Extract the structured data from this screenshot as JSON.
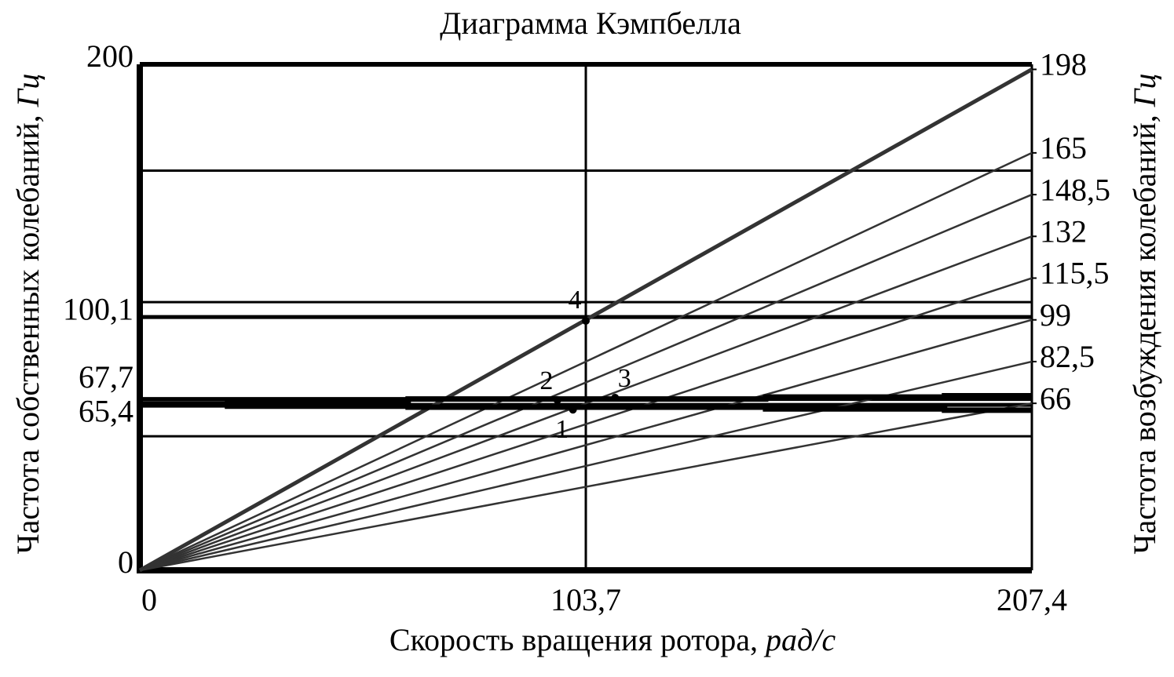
{
  "chart_data": {
    "type": "line",
    "title": "Диаграмма Кэмпбелла",
    "x_label": "Скорость вращения ротора, ",
    "x_label_unit": "рад/с",
    "y_label": "Частота собственных колебаний, ",
    "y_label_unit": "Гц",
    "y2_label": "Частота возбуждения колебаний, ",
    "y2_label_unit": "Гц",
    "xlim": [
      0,
      207.4
    ],
    "xticks": [
      0,
      {
        "value": 103.7,
        "label": "103,7"
      },
      {
        "value": 207.4,
        "label": "207,4"
      }
    ],
    "ylim": [
      0,
      200
    ],
    "yticks": [
      0,
      {
        "value": 65.4,
        "label": "65,4"
      },
      {
        "value": 67.7,
        "label": "67,7"
      },
      {
        "value": 100.1,
        "label": "100,1"
      },
      200
    ],
    "y2lim": [
      0,
      200
    ],
    "y2ticks": [
      66,
      {
        "value": 82.5,
        "label": "82,5"
      },
      99,
      {
        "value": 115.5,
        "label": "115,5"
      },
      132,
      {
        "value": 148.5,
        "label": "148,5"
      },
      165,
      198
    ],
    "ref_lines": [
      53,
      106,
      158
    ],
    "excitation": [
      {
        "x": [
          0,
          207.4
        ],
        "values": [
          0,
          198
        ],
        "axis": "y2"
      },
      {
        "x": [
          0,
          207.4
        ],
        "values": [
          0,
          165
        ],
        "axis": "y2"
      },
      {
        "x": [
          0,
          207.4
        ],
        "values": [
          0,
          148.5
        ],
        "axis": "y2"
      },
      {
        "x": [
          0,
          207.4
        ],
        "values": [
          0,
          132
        ],
        "axis": "y2"
      },
      {
        "x": [
          0,
          207.4
        ],
        "values": [
          0,
          115.5
        ],
        "axis": "y2"
      },
      {
        "x": [
          0,
          207.4
        ],
        "values": [
          0,
          99
        ],
        "axis": "y2"
      },
      {
        "x": [
          0,
          207.4
        ],
        "values": [
          0,
          82.5
        ],
        "axis": "y2"
      },
      {
        "x": [
          0,
          207.4
        ],
        "values": [
          0,
          66
        ],
        "axis": "y2"
      }
    ],
    "series": [
      {
        "color": "#000000",
        "x": [
          0,
          20.4,
          20.4,
          62.4,
          62.4,
          145.5,
          145.5,
          187.1,
          187.1,
          207.4
        ],
        "values": [
          65.8,
          65.8,
          66.5,
          66.5,
          67.7,
          67.7,
          68.5,
          68.5,
          69.0,
          69.0
        ]
      },
      {
        "color": "#000000",
        "x": [
          0,
          20.4,
          20.4,
          62.4,
          62.4,
          145.5,
          145.5,
          187.1,
          187.1,
          207.4
        ],
        "values": [
          65.4,
          65.4,
          64.9,
          64.9,
          64.5,
          64.5,
          63.8,
          63.8,
          63.3,
          63.3
        ]
      }
    ],
    "points": [
      {
        "label": "1",
        "x": 100.7,
        "y": 63.5
      },
      {
        "label": "2",
        "x": 97.1,
        "y": 67.3
      },
      {
        "label": "3",
        "x": 110.5,
        "y": 68.2
      },
      {
        "label": "4",
        "x": 103.7,
        "y": 98.6
      }
    ],
    "color": "#333333"
  }
}
